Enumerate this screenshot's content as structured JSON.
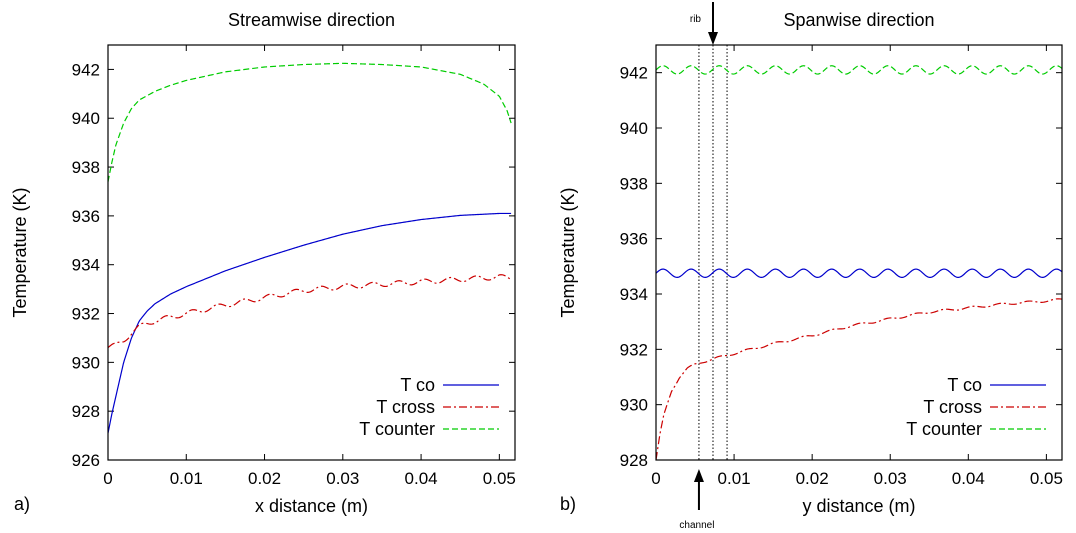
{
  "chart_data": [
    {
      "type": "line",
      "panel_label": "a)",
      "title": "Streamwise direction",
      "xlabel": "x distance (m)",
      "ylabel": "Temperature (K)",
      "xlim": [
        0,
        0.052
      ],
      "ylim": [
        926,
        943
      ],
      "xticks": [
        "0",
        "0.01",
        "0.02",
        "0.03",
        "0.04",
        "0.05"
      ],
      "xtick_values": [
        0,
        0.01,
        0.02,
        0.03,
        0.04,
        0.05
      ],
      "yticks": [
        "926",
        "928",
        "930",
        "932",
        "934",
        "936",
        "938",
        "940",
        "942"
      ],
      "ytick_values": [
        926,
        928,
        930,
        932,
        934,
        936,
        938,
        940,
        942
      ],
      "grid": false,
      "legend_position": "bottom-right",
      "series": [
        {
          "name": "T co",
          "color": "#0000cc",
          "style": "solid",
          "x": [
            0,
            0.0005,
            0.001,
            0.002,
            0.003,
            0.004,
            0.005,
            0.006,
            0.008,
            0.01,
            0.015,
            0.02,
            0.025,
            0.03,
            0.035,
            0.04,
            0.045,
            0.05,
            0.0515
          ],
          "y": [
            927.1,
            927.9,
            928.6,
            930.0,
            931.0,
            931.7,
            932.1,
            932.4,
            932.8,
            933.1,
            933.75,
            934.3,
            934.8,
            935.25,
            935.6,
            935.85,
            936.02,
            936.1,
            936.1
          ]
        },
        {
          "name": "T cross",
          "color": "#cc0000",
          "style": "dashdot",
          "x": [
            0,
            0.001,
            0.002,
            0.003,
            0.004,
            0.005,
            0.006,
            0.008,
            0.01,
            0.015,
            0.02,
            0.025,
            0.03,
            0.035,
            0.04,
            0.045,
            0.05,
            0.0515
          ],
          "y": [
            930.6,
            930.7,
            930.9,
            931.2,
            931.45,
            931.6,
            931.7,
            931.85,
            932.0,
            932.35,
            932.65,
            932.95,
            933.1,
            933.2,
            933.3,
            933.4,
            933.5,
            933.45
          ],
          "ripple_amplitude": 0.1,
          "ripple_period": 0.0033
        },
        {
          "name": "T counter",
          "color": "#00cc00",
          "style": "dashed",
          "x": [
            0,
            0.0005,
            0.001,
            0.002,
            0.003,
            0.004,
            0.006,
            0.008,
            0.01,
            0.015,
            0.02,
            0.025,
            0.03,
            0.035,
            0.04,
            0.045,
            0.048,
            0.05,
            0.051,
            0.0515
          ],
          "y": [
            937.4,
            938.2,
            938.9,
            939.8,
            940.4,
            940.75,
            941.1,
            941.35,
            941.55,
            941.9,
            942.1,
            942.2,
            942.25,
            942.2,
            942.1,
            941.8,
            941.4,
            940.9,
            940.3,
            939.8
          ]
        }
      ]
    },
    {
      "type": "line",
      "panel_label": "b)",
      "title": "Spanwise direction",
      "xlabel": "y distance (m)",
      "ylabel": "Temperature (K)",
      "xlim": [
        0,
        0.052
      ],
      "ylim": [
        928,
        943
      ],
      "xticks": [
        "0",
        "0.01",
        "0.02",
        "0.03",
        "0.04",
        "0.05"
      ],
      "xtick_values": [
        0,
        0.01,
        0.02,
        0.03,
        0.04,
        0.05
      ],
      "yticks": [
        "928",
        "930",
        "932",
        "934",
        "936",
        "938",
        "940",
        "942"
      ],
      "ytick_values": [
        928,
        930,
        932,
        934,
        936,
        938,
        940,
        942
      ],
      "grid": false,
      "legend_position": "bottom-right",
      "annotations": [
        {
          "text": "rib",
          "x": 0.0073,
          "arrow": "down",
          "position": "top"
        },
        {
          "text": "channel",
          "x": 0.0055,
          "arrow": "up",
          "position": "bottom"
        }
      ],
      "vertical_lines": [
        0.0055,
        0.0073,
        0.0091
      ],
      "series": [
        {
          "name": "T co",
          "color": "#0000cc",
          "style": "solid",
          "x": [
            0,
            0.052
          ],
          "y": [
            934.75,
            934.75
          ],
          "ripple_amplitude": 0.15,
          "ripple_period": 0.0036
        },
        {
          "name": "T cross",
          "color": "#cc0000",
          "style": "dashdot",
          "x": [
            0,
            0.0005,
            0.001,
            0.002,
            0.003,
            0.004,
            0.005,
            0.006,
            0.008,
            0.01,
            0.015,
            0.02,
            0.025,
            0.03,
            0.035,
            0.04,
            0.045,
            0.05,
            0.052
          ],
          "y": [
            928.0,
            928.9,
            929.6,
            930.5,
            931.0,
            931.3,
            931.45,
            931.55,
            931.7,
            931.85,
            932.2,
            932.5,
            932.85,
            933.1,
            933.35,
            933.5,
            933.65,
            933.75,
            933.8
          ],
          "ripple_amplitude": 0.04,
          "ripple_period": 0.0036
        },
        {
          "name": "T counter",
          "color": "#00cc00",
          "style": "dashed",
          "x": [
            0,
            0.052
          ],
          "y": [
            942.1,
            942.1
          ],
          "ripple_amplitude": 0.15,
          "ripple_period": 0.0036
        }
      ]
    }
  ]
}
